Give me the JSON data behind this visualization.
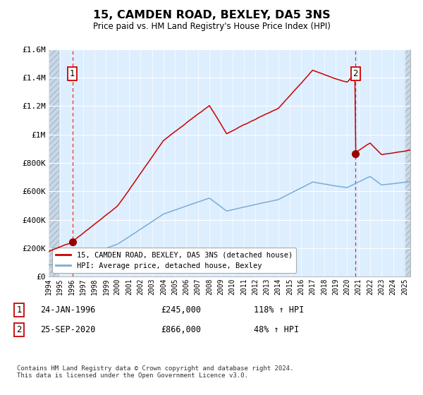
{
  "title": "15, CAMDEN ROAD, BEXLEY, DA5 3NS",
  "subtitle": "Price paid vs. HM Land Registry's House Price Index (HPI)",
  "transaction1": {
    "date": "24-JAN-1996",
    "price": 245000,
    "pct": "118%",
    "x_year": 1996.07
  },
  "transaction2": {
    "date": "25-SEP-2020",
    "price": 866000,
    "pct": "48%",
    "x_year": 2020.73
  },
  "ylabel_ticks": [
    "£0",
    "£200K",
    "£400K",
    "£600K",
    "£800K",
    "£1M",
    "£1.2M",
    "£1.4M",
    "£1.6M"
  ],
  "ytick_vals": [
    0,
    200000,
    400000,
    600000,
    800000,
    1000000,
    1200000,
    1400000,
    1600000
  ],
  "xmin": 1994.0,
  "xmax": 2025.5,
  "ymin": 0,
  "ymax": 1600000,
  "property_color": "#cc0000",
  "hpi_color": "#7aadd4",
  "background_color": "#ddeeff",
  "hatch_bg_color": "#c8d8e8",
  "legend_label1": "15, CAMDEN ROAD, BEXLEY, DA5 3NS (detached house)",
  "legend_label2": "HPI: Average price, detached house, Bexley",
  "footer": "Contains HM Land Registry data © Crown copyright and database right 2024.\nThis data is licensed under the Open Government Licence v3.0.",
  "marker_color": "#990000",
  "marker_size": 7,
  "dashed_color": "#cc3333"
}
